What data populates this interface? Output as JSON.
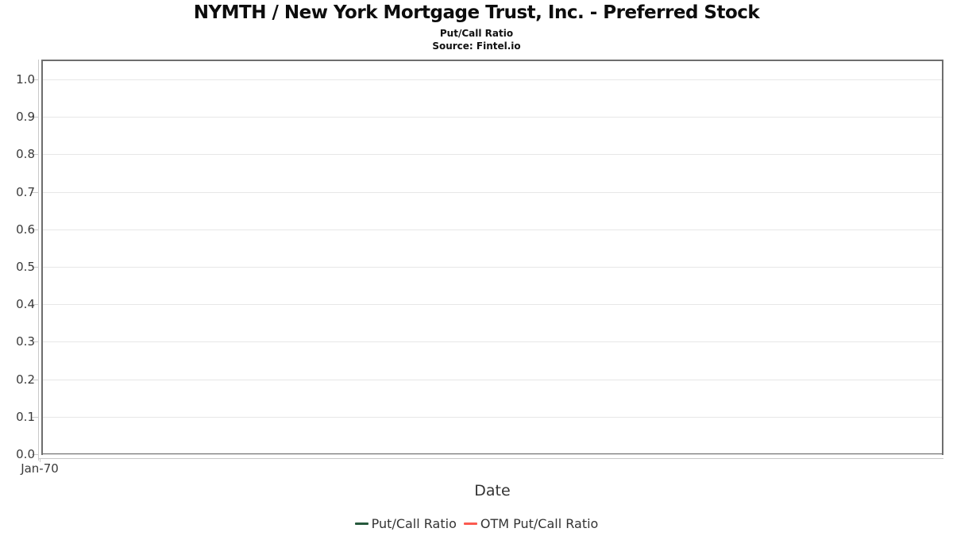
{
  "header": {
    "title": "NYMTH / New York Mortgage Trust, Inc. - Preferred Stock",
    "subtitle": "Put/Call Ratio",
    "source": "Source: Fintel.io"
  },
  "chart_data": {
    "type": "line",
    "title": "NYMTH / New York Mortgage Trust, Inc. - Preferred Stock",
    "subtitle": "Put/Call Ratio",
    "source": "Source: Fintel.io",
    "xlabel": "Date",
    "ylabel": "",
    "ylim": [
      0.0,
      1.05
    ],
    "yticks": [
      0.0,
      0.1,
      0.2,
      0.3,
      0.4,
      0.5,
      0.6,
      0.7,
      0.8,
      0.9,
      1.0
    ],
    "ytick_labels": [
      "0.0",
      "0.1",
      "0.2",
      "0.3",
      "0.4",
      "0.5",
      "0.6",
      "0.7",
      "0.8",
      "0.9",
      "1.0"
    ],
    "xtick_labels": [
      "Jan-70"
    ],
    "grid": true,
    "legend_position": "bottom",
    "series": [
      {
        "name": "Put/Call Ratio",
        "color": "#26593c",
        "x": [],
        "values": []
      },
      {
        "name": "OTM Put/Call Ratio",
        "color": "#fb5a50",
        "x": [],
        "values": []
      }
    ]
  },
  "legend": {
    "items": [
      {
        "label": "Put/Call Ratio",
        "color": "#26593c"
      },
      {
        "label": "OTM Put/Call Ratio",
        "color": "#fb5a50"
      }
    ]
  },
  "colors": {
    "plot_border": "#6e6e6e",
    "gridline": "#e7e7e7",
    "axis_line": "#c9c9c9",
    "tick_label": "#3a3a3a"
  }
}
